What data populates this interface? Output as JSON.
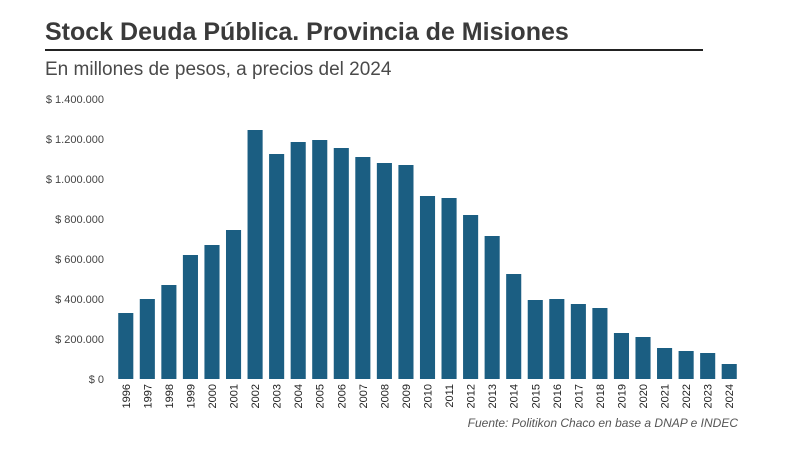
{
  "title": "Stock Deuda Pública. Provincia de Misiones",
  "subtitle": "En millones de pesos, a precios del 2024",
  "source": "Fuente: Politikon Chaco en base a DNAP e INDEC",
  "colors": {
    "bar": "#1b5e82",
    "title": "#3a3a3a",
    "text": "#444444"
  },
  "chart_data": {
    "type": "bar",
    "title": "Stock Deuda Pública. Provincia de Misiones",
    "subtitle": "En millones de pesos, a precios del 2024",
    "xlabel": "",
    "ylabel": "",
    "ylim": [
      0,
      1400000
    ],
    "yticks": [
      0,
      200000,
      400000,
      600000,
      800000,
      1000000,
      1200000,
      1400000
    ],
    "ytick_labels": [
      "$ 0",
      "$ 200.000",
      "$ 400.000",
      "$ 600.000",
      "$ 800.000",
      "$ 1.000.000",
      "$ 1.200.000",
      "$ 1.400.000"
    ],
    "grid": false,
    "categories": [
      "1996",
      "1997",
      "1998",
      "1999",
      "2000",
      "2001",
      "2002",
      "2003",
      "2004",
      "2005",
      "2006",
      "2007",
      "2008",
      "2009",
      "2010",
      "2011",
      "2012",
      "2013",
      "2014",
      "2015",
      "2016",
      "2017",
      "2018",
      "2019",
      "2020",
      "2021",
      "2022",
      "2023",
      "2024"
    ],
    "values": [
      330000,
      400000,
      470000,
      620000,
      670000,
      745000,
      1245000,
      1125000,
      1185000,
      1195000,
      1155000,
      1110000,
      1080000,
      1070000,
      915000,
      905000,
      820000,
      715000,
      525000,
      395000,
      400000,
      375000,
      355000,
      230000,
      210000,
      155000,
      140000,
      130000,
      75000
    ]
  }
}
